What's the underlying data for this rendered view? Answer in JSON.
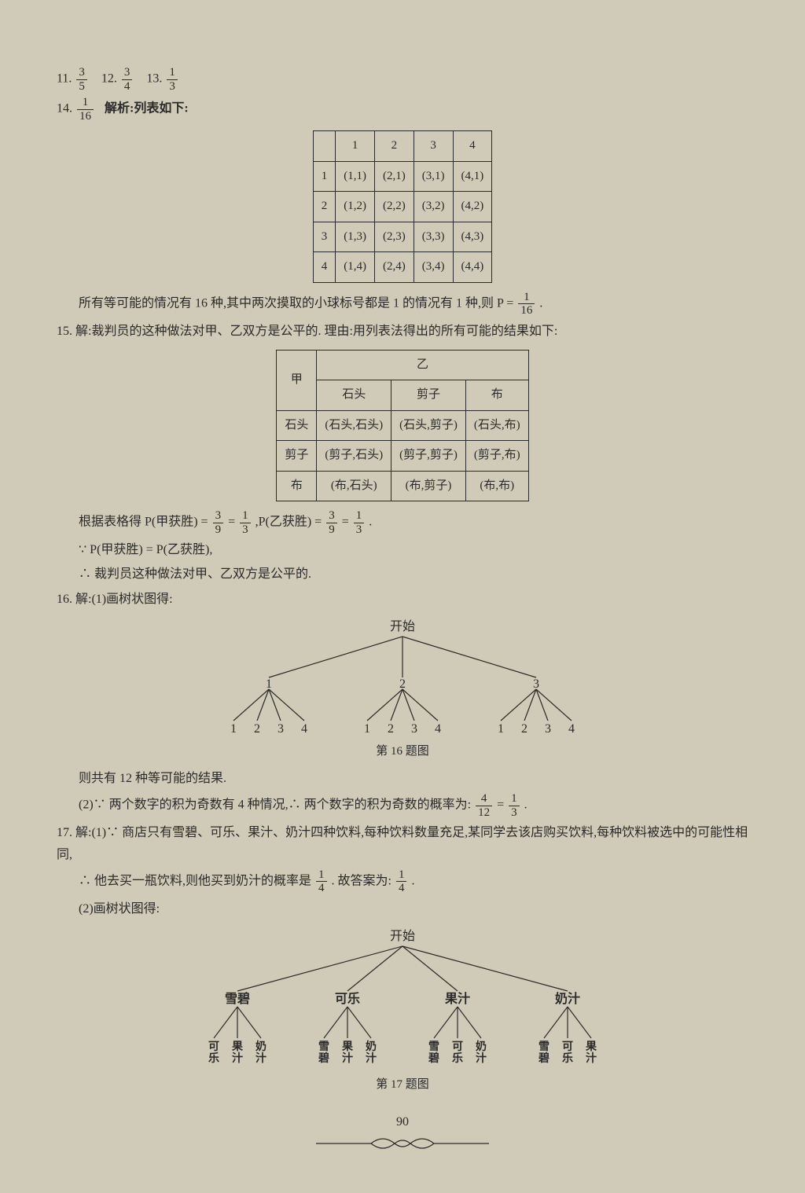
{
  "q11": {
    "n": "11.",
    "fn": "3",
    "fd": "5"
  },
  "q12": {
    "n": "12.",
    "fn": "3",
    "fd": "4"
  },
  "q13": {
    "n": "13.",
    "fn": "1",
    "fd": "3"
  },
  "q14": {
    "n": "14.",
    "fn": "1",
    "fd": "16",
    "label": "解析:列表如下:",
    "headers": [
      "",
      "1",
      "2",
      "3",
      "4"
    ],
    "rows": [
      [
        "1",
        "(1,1)",
        "(2,1)",
        "(3,1)",
        "(4,1)"
      ],
      [
        "2",
        "(1,2)",
        "(2,2)",
        "(3,2)",
        "(4,2)"
      ],
      [
        "3",
        "(1,3)",
        "(2,3)",
        "(3,3)",
        "(4,3)"
      ],
      [
        "4",
        "(1,4)",
        "(2,4)",
        "(3,4)",
        "(4,4)"
      ]
    ],
    "note_a": "所有等可能的情况有 16 种,其中两次摸取的小球标号都是 1 的情况有 1 种,则 P = ",
    "note_fn": "1",
    "note_fd": "16",
    "note_end": "."
  },
  "q15": {
    "n": "15.",
    "lead": "解:裁判员的这种做法对甲、乙双方是公平的. 理由:用列表法得出的所有可能的结果如下:",
    "corner": "甲",
    "top": "乙",
    "cols": [
      "石头",
      "剪子",
      "布"
    ],
    "rows": [
      [
        "石头",
        "(石头,石头)",
        "(石头,剪子)",
        "(石头,布)"
      ],
      [
        "剪子",
        "(剪子,石头)",
        "(剪子,剪子)",
        "(剪子,布)"
      ],
      [
        "布",
        "(布,石头)",
        "(布,剪子)",
        "(布,布)"
      ]
    ],
    "line2a": "根据表格得 P(甲获胜) = ",
    "f1n": "3",
    "f1d": "9",
    "eq": " = ",
    "f2n": "1",
    "f2d": "3",
    "line2b": ",P(乙获胜) = ",
    "f3n": "3",
    "f3d": "9",
    "f4n": "1",
    "f4d": "3",
    "dot": ".",
    "line3": "∵ P(甲获胜) = P(乙获胜),",
    "line4": "∴ 裁判员这种做法对甲、乙双方是公平的."
  },
  "q16": {
    "n": "16.",
    "lead": "解:(1)画树状图得:",
    "root": "开始",
    "mid": [
      "1",
      "2",
      "3"
    ],
    "leaves": [
      "1",
      "2",
      "3",
      "4",
      "1",
      "2",
      "3",
      "4",
      "1",
      "2",
      "3",
      "4"
    ],
    "caption": "第 16 题图",
    "line1": "则共有 12 种等可能的结果.",
    "line2a": "(2)∵ 两个数字的积为奇数有 4 种情况,∴ 两个数字的积为奇数的概率为:",
    "f1n": "4",
    "f1d": "12",
    "eq": " = ",
    "f2n": "1",
    "f2d": "3",
    "dot": "."
  },
  "q17": {
    "n": "17.",
    "lead1": "解:(1)∵ 商店只有雪碧、可乐、果汁、奶汁四种饮料,每种饮料数量充足,某同学去该店购买饮料,每种饮料被选中的可能性相同,",
    "lead2a": "∴ 他去买一瓶饮料,则他买到奶汁的概率是",
    "f1n": "1",
    "f1d": "4",
    "mid": ". 故答案为:",
    "f2n": "1",
    "f2d": "4",
    "dot": ".",
    "lead3": "(2)画树状图得:",
    "root": "开始",
    "midlabels": [
      "雪碧",
      "可乐",
      "果汁",
      "奶汁"
    ],
    "leaves": [
      [
        "可乐",
        "果汁",
        "奶汁"
      ],
      [
        "雪碧",
        "果汁",
        "奶汁"
      ],
      [
        "雪碧",
        "可乐",
        "奶汁"
      ],
      [
        "雪碧",
        "可乐",
        "果汁"
      ]
    ],
    "caption": "第 17 题图"
  },
  "pagenum": "90"
}
